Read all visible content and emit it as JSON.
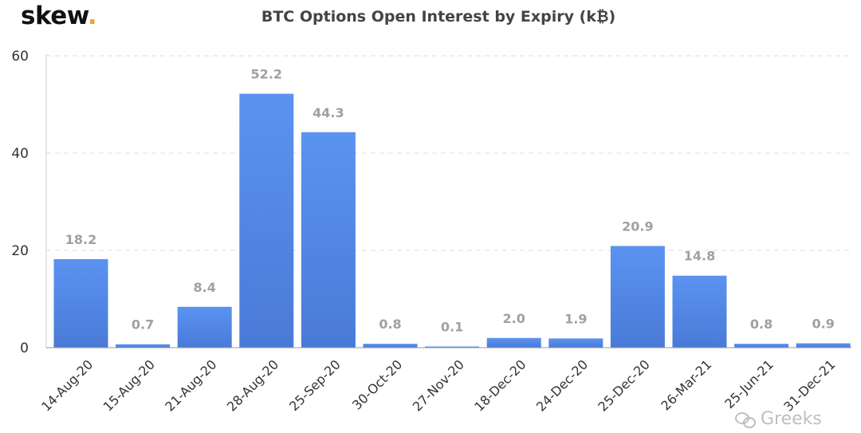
{
  "brand": {
    "name": "skew",
    "dot": ".",
    "dot_color": "#e8a33d"
  },
  "watermark": {
    "text": "Greeks",
    "icon": "wechat-icon"
  },
  "colors": {
    "bar_top": "#5b93f0",
    "bar_bottom": "#4a7ad8",
    "label": "#a0a0a0",
    "grid": "#dddddd",
    "axis_text": "#333333"
  },
  "chart_data": {
    "type": "bar",
    "title": "BTC Options Open Interest by Expiry (k₿)",
    "xlabel": "",
    "ylabel": "",
    "ylim": [
      0,
      60
    ],
    "yticks": [
      "0",
      "20",
      "40",
      "60"
    ],
    "grid": true,
    "categories": [
      "14-Aug-20",
      "15-Aug-20",
      "21-Aug-20",
      "28-Aug-20",
      "25-Sep-20",
      "30-Oct-20",
      "27-Nov-20",
      "18-Dec-20",
      "24-Dec-20",
      "25-Dec-20",
      "26-Mar-21",
      "25-Jun-21",
      "31-Dec-21"
    ],
    "values": [
      18.2,
      0.7,
      8.4,
      52.2,
      44.3,
      0.8,
      0.1,
      2.0,
      1.9,
      20.9,
      14.8,
      0.8,
      0.9
    ],
    "value_labels": [
      "18.2",
      "0.7",
      "8.4",
      "52.2",
      "44.3",
      "0.8",
      "0.1",
      "2.0",
      "1.9",
      "20.9",
      "14.8",
      "0.8",
      "0.9"
    ]
  }
}
